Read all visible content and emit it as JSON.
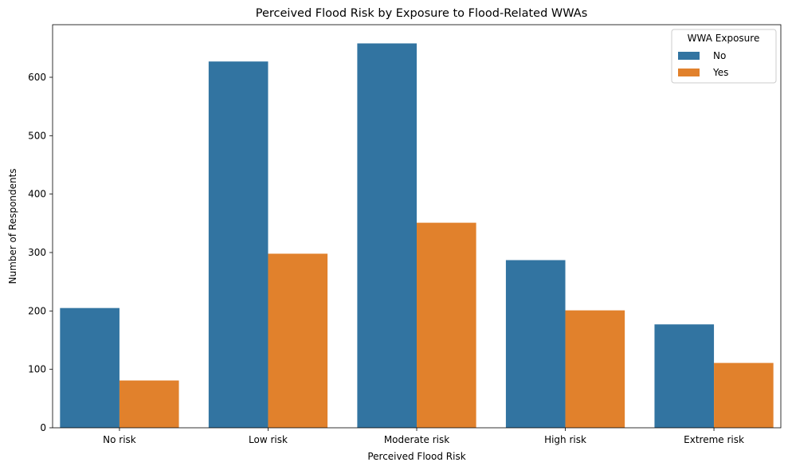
{
  "chart_data": {
    "type": "bar",
    "title": "Perceived Flood Risk by Exposure to Flood-Related WWAs",
    "xlabel": "Perceived Flood Risk",
    "ylabel": "Number of Respondents",
    "categories": [
      "No risk",
      "Low risk",
      "Moderate risk",
      "High risk",
      "Extreme risk"
    ],
    "series": [
      {
        "name": "No",
        "color": "#3274a1",
        "values": [
          205,
          627,
          658,
          287,
          177
        ]
      },
      {
        "name": "Yes",
        "color": "#e1812c",
        "values": [
          81,
          298,
          351,
          201,
          111
        ]
      }
    ],
    "ylim": [
      0,
      690
    ],
    "yticks": [
      0,
      100,
      200,
      300,
      400,
      500,
      600
    ],
    "grid": false,
    "legend": {
      "title": "WWA Exposure",
      "placement": "top-right"
    }
  }
}
